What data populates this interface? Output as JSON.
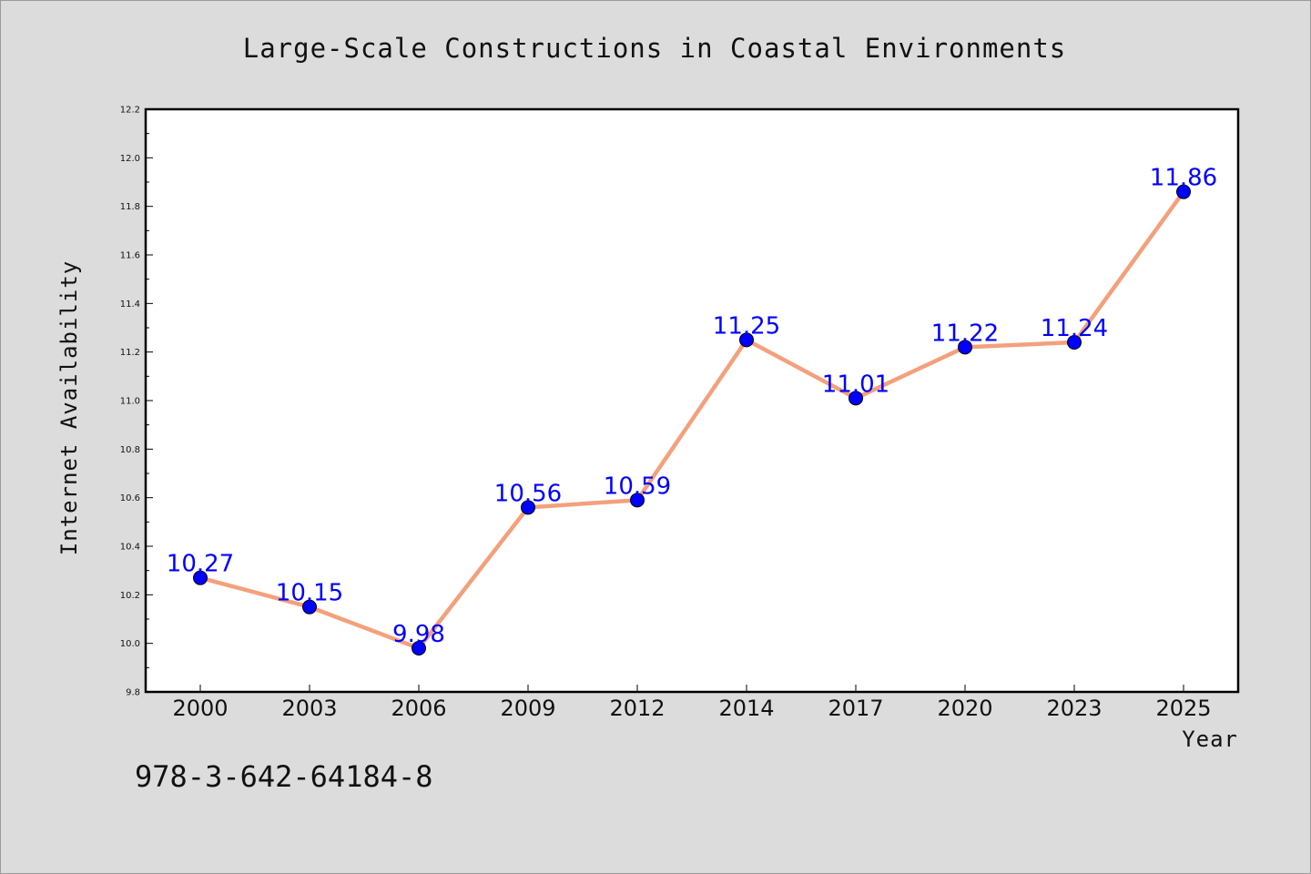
{
  "chart_data": {
    "type": "line",
    "title": "Large-Scale Constructions in Coastal Environments",
    "xlabel": "Year",
    "ylabel": "Internet Availability",
    "categories": [
      "2000",
      "2003",
      "2006",
      "2009",
      "2012",
      "2014",
      "2017",
      "2020",
      "2023",
      "2025"
    ],
    "series": [
      {
        "values": [
          10.27,
          10.15,
          9.98,
          10.56,
          10.59,
          11.25,
          11.01,
          11.22,
          11.24,
          11.86
        ],
        "labels": [
          "10.27",
          "10.15",
          "9.98",
          "10.56",
          "10.59",
          "11.25",
          "11.01",
          "11.22",
          "11.24",
          "11.86"
        ],
        "line_color": "#f4a07c",
        "marker_color": "#0000ff"
      }
    ],
    "ylim": [
      9.8,
      12.2
    ],
    "yticks": [
      "9.8",
      "10.0",
      "10.2",
      "10.4",
      "10.6",
      "10.8",
      "11.0",
      "11.2",
      "11.4",
      "11.6",
      "11.8",
      "12.0",
      "12.2"
    ],
    "grid": false,
    "data_label_color": "#0000ff"
  },
  "footer": {
    "isbn": "978-3-642-64184-8"
  }
}
